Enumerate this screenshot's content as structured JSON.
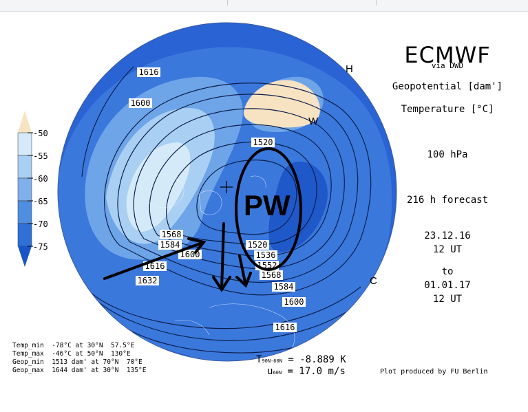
{
  "header": {
    "title": "ECMWF",
    "source": "via DWD",
    "var1": "Geopotential [dam']",
    "var2": "Temperature [°C]",
    "level": "100 hPa",
    "forecast": "216 h forecast",
    "from_date": "23.12.16",
    "from_time": "12 UT",
    "to_word": "to",
    "to_date": "01.01.17",
    "to_time": "12 UT"
  },
  "colorbar": {
    "labels": [
      "-50",
      "-55",
      "-60",
      "-65",
      "-70",
      "-75"
    ],
    "colors": [
      "#f7e2c2",
      "#d4eaf8",
      "#a9cff2",
      "#7fb0ea",
      "#4f8ee0",
      "#2f6fd6",
      "#1a55c8"
    ]
  },
  "stats": {
    "temp_min": "Temp_min  -78°C at 30°N  57.5°E",
    "temp_max": "Temp_max  -46°C at 50°N  130°E",
    "geop_min": "Geop_min  1513 dam' at 70°N  70°E",
    "geop_max": "Geop_max  1644 dam' at 30°N  135°E"
  },
  "diagnostics": {
    "t_label": "T",
    "t_sub": "90N-60N",
    "t_value": "=  -8.889 K",
    "u_label": "u",
    "u_sub": "60N",
    "u_value": "=  17.0 m/s"
  },
  "credit": "Plot produced by FU Berlin",
  "map_labels": {
    "contours": [
      "1616",
      "1600",
      "1520",
      "1568",
      "1584",
      "1600",
      "1616",
      "1632",
      "1520",
      "1536",
      "1552",
      "1568",
      "1584",
      "1600",
      "1616"
    ],
    "H": "H",
    "W": "W",
    "C": "C",
    "PW": "PW"
  },
  "colors": {
    "ocean_deep": "#2a63d4",
    "mid": "#4f8ee0",
    "light": "#a9cff2",
    "warm": "#f7e2c2",
    "annotation": "#000000"
  }
}
